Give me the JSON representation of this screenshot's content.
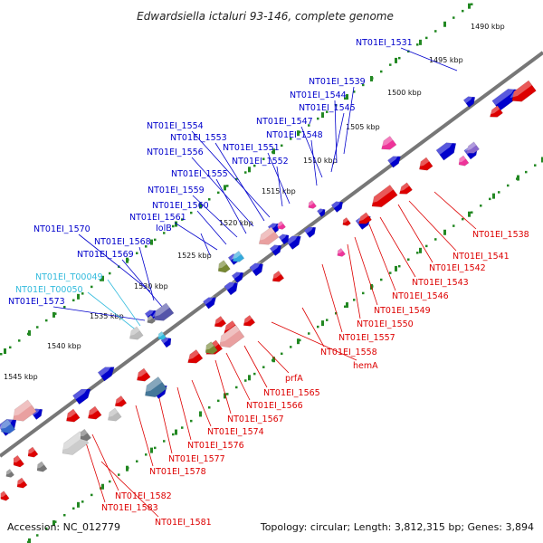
{
  "title": "Edwardsiella ictaluri 93-146, complete genome",
  "footer": {
    "accession": "Accession: NC_012779",
    "topology": "Topology: circular; Length: 3,812,315 bp; Genes: 3,894"
  },
  "colors": {
    "forward": "#0000cc",
    "reverse": "#dd0000",
    "trna": "#33bbdd",
    "tick": "#228822",
    "backbone": "#777777"
  },
  "kbp_labels": [
    "1490 kbp",
    "1495 kbp",
    "1500 kbp",
    "1505 kbp",
    "1510 kbp",
    "1515 kbp",
    "1520 kbp",
    "1525 kbp",
    "1530 kbp",
    "1535 kbp",
    "1540 kbp",
    "1545 kbp"
  ],
  "forward_labels": [
    "NT01EI_1531",
    "NT01EI_1539",
    "NT01EI_1544",
    "NT01EI_1545",
    "NT01EI_1547",
    "NT01EI_1548",
    "NT01EI_1551",
    "NT01EI_1552",
    "NT01EI_1554",
    "NT01EI_1553",
    "NT01EI_1556",
    "NT01EI_1555",
    "NT01EI_1559",
    "NT01EI_1560",
    "NT01EI_1561",
    "IolB",
    "NT01EI_1570",
    "NT01EI_1568",
    "NT01EI_1569",
    "NT01EI_1573"
  ],
  "trna_labels": [
    "NT01EI_T00049",
    "NT01EI_T00050"
  ],
  "reverse_labels": [
    "NT01EI_1538",
    "NT01EI_1541",
    "NT01EI_1542",
    "NT01EI_1543",
    "NT01EI_1546",
    "NT01EI_1549",
    "NT01EI_1550",
    "NT01EI_1557",
    "NT01EI_1558",
    "hemA",
    "prfA",
    "NT01EI_1565",
    "NT01EI_1566",
    "NT01EI_1567",
    "NT01EI_1574",
    "NT01EI_1576",
    "NT01EI_1577",
    "NT01EI_1578",
    "NT01EI_1582",
    "NT01EI_1583",
    "NT01EI_1581"
  ]
}
